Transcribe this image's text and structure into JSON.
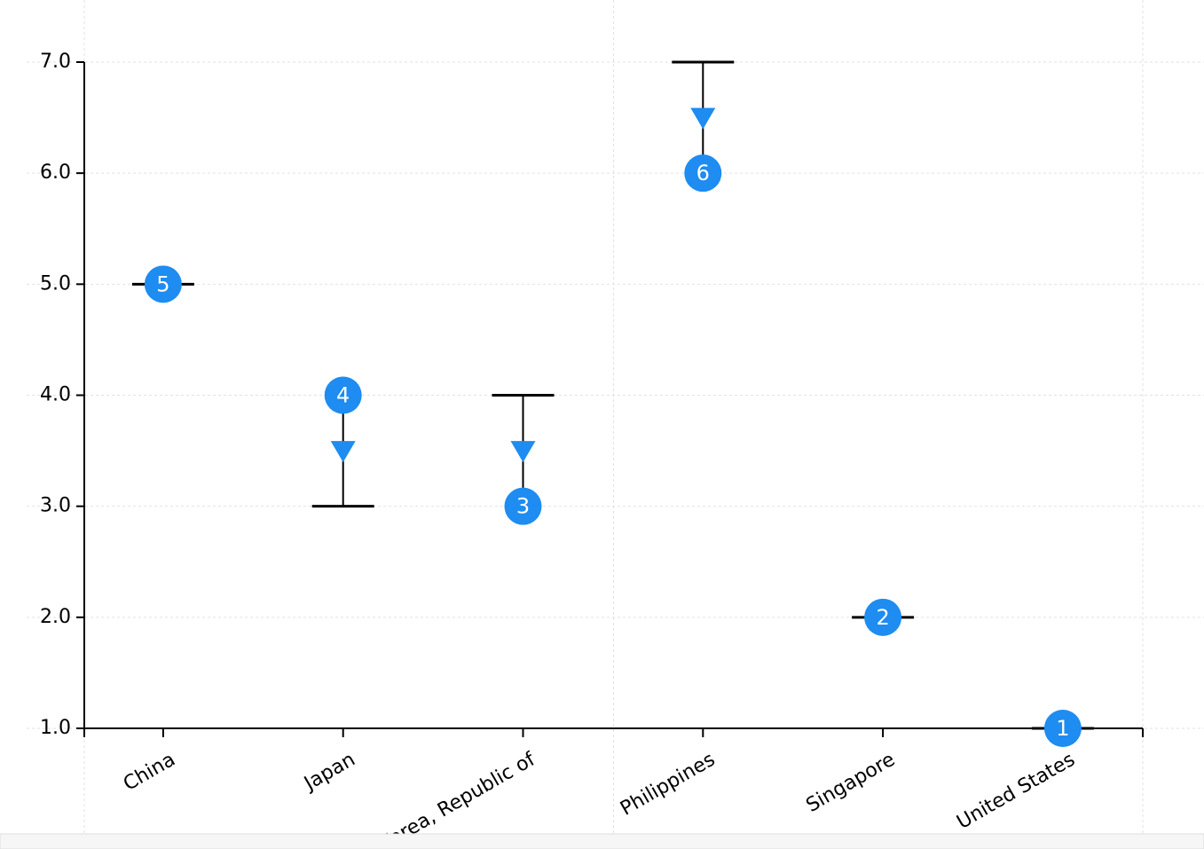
{
  "chart_data": {
    "type": "rank-change",
    "categories": [
      "China",
      "Japan",
      "Korea, Republic of",
      "Philippines",
      "Singapore",
      "United States"
    ],
    "series": [
      {
        "color": "#1e8cf0",
        "values": [
          5,
          4,
          3,
          6,
          2,
          1
        ]
      },
      {
        "color": "#000000",
        "values": [
          5,
          3,
          4,
          7,
          2,
          1
        ]
      }
    ],
    "ylim": [
      1,
      7
    ],
    "yticks": [
      {
        "value": 1,
        "label": "1.0"
      },
      {
        "value": 2,
        "label": "2.0"
      },
      {
        "value": 3,
        "label": "3.0"
      },
      {
        "value": 4,
        "label": "4.0"
      },
      {
        "value": 5,
        "label": "5.0"
      },
      {
        "value": 6,
        "label": "6.0"
      },
      {
        "value": 7,
        "label": "7.0"
      }
    ],
    "grid": true
  }
}
